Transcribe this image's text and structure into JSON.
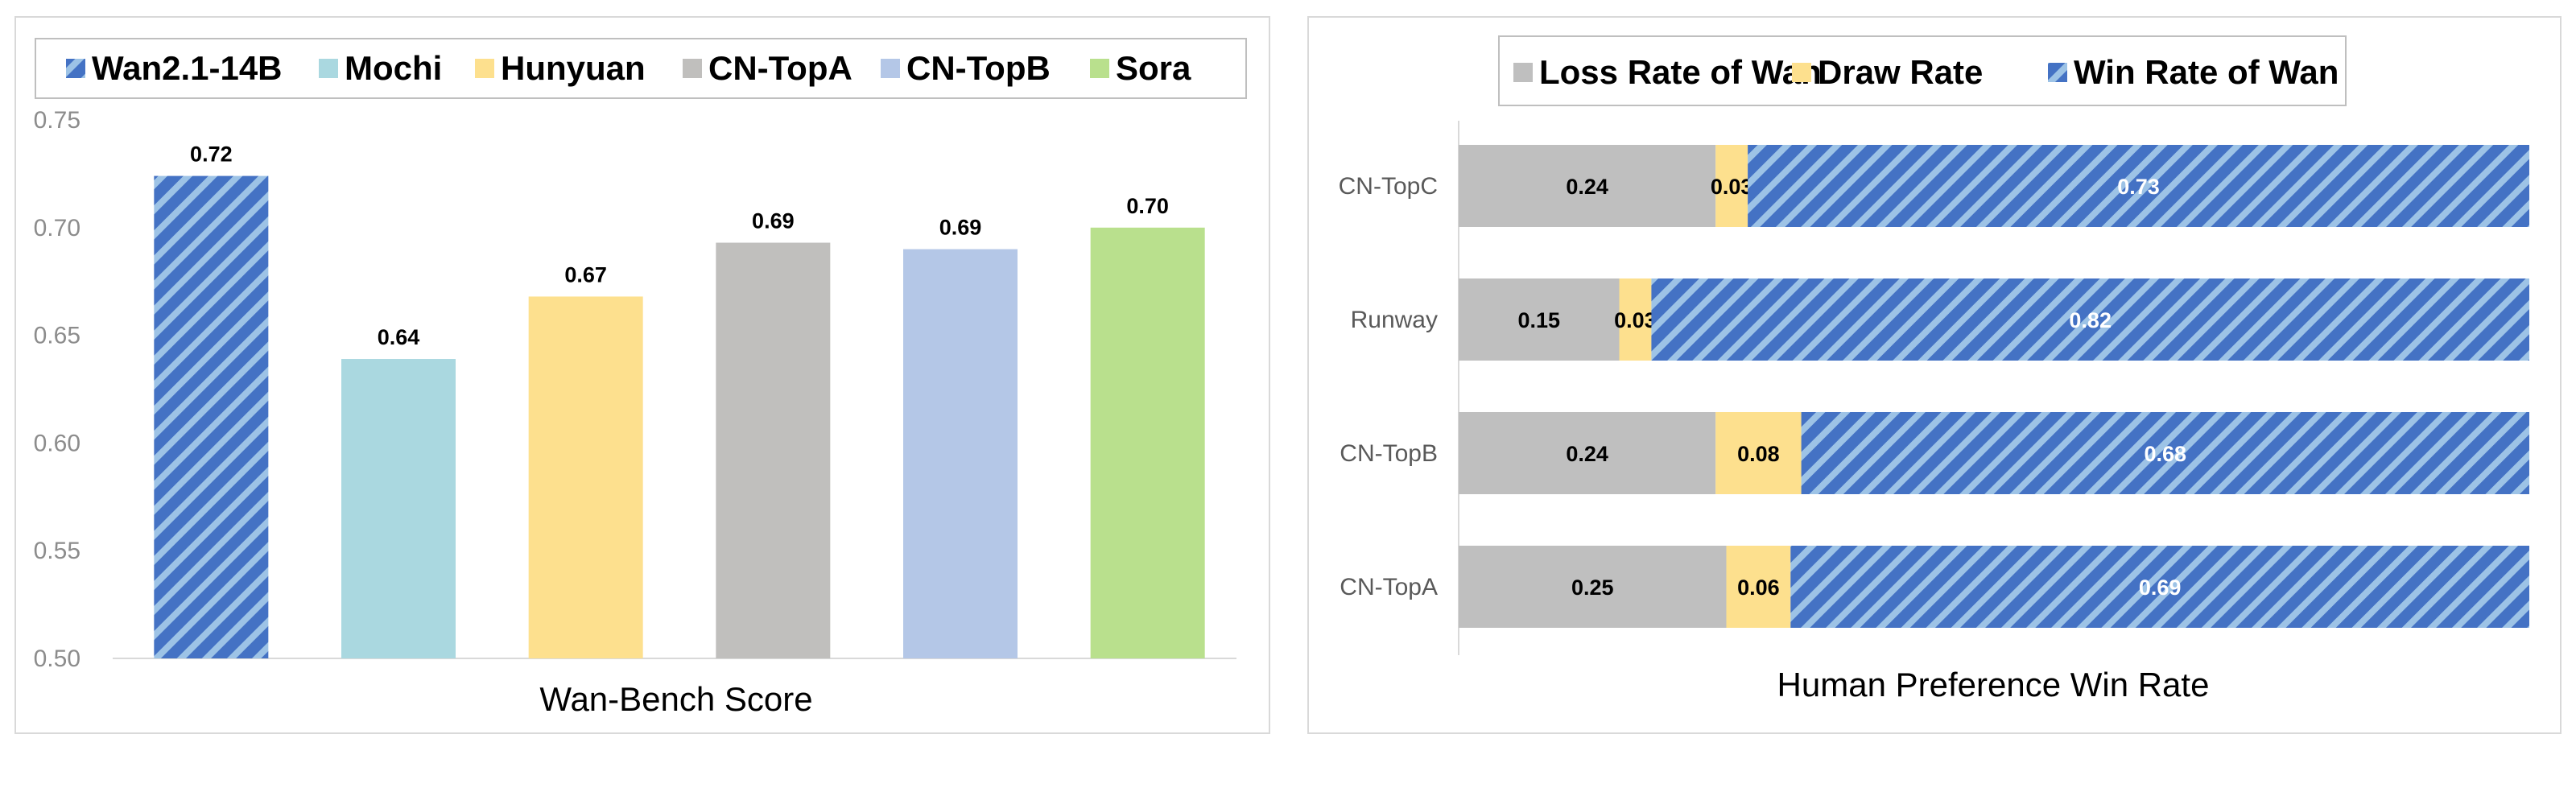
{
  "chart_data": [
    {
      "type": "bar",
      "title": "Wan-Bench Score",
      "xlabel": "Wan-Bench Score",
      "ylabel": "",
      "ylim": [
        0.5,
        0.75
      ],
      "yticks": [
        "0.50",
        "0.55",
        "0.60",
        "0.65",
        "0.70",
        "0.75"
      ],
      "categories": [
        "Wan2.1-14B",
        "Mochi",
        "Hunyuan",
        "CN-TopA",
        "CN-TopB",
        "Sora"
      ],
      "values": [
        0.724,
        0.639,
        0.668,
        0.693,
        0.69,
        0.7
      ],
      "value_labels": [
        "0.72",
        "0.64",
        "0.67",
        "0.69",
        "0.69",
        "0.70"
      ],
      "colors": [
        "#4472c4",
        "#aad8e0",
        "#fde08e",
        "#c0bfbd",
        "#b4c7e7",
        "#b9e08d"
      ],
      "hatched": [
        true,
        false,
        false,
        false,
        false,
        false
      ],
      "legend": [
        "Wan2.1-14B",
        "Mochi",
        "Hunyuan",
        "CN-TopA",
        "CN-TopB",
        "Sora"
      ],
      "legend_position": "top"
    },
    {
      "type": "bar",
      "orientation": "horizontal-stacked-100",
      "title": "Human Preference Win Rate",
      "xlabel": "Human Preference Win Rate",
      "categories": [
        "CN-TopC",
        "Runway",
        "CN-TopB",
        "CN-TopA"
      ],
      "series": [
        {
          "name": "Loss Rate of Wan",
          "color": "#bfbfbf",
          "values": [
            0.24,
            0.15,
            0.24,
            0.25
          ],
          "labels": [
            "0.24",
            "0.15",
            "0.24",
            "0.25"
          ],
          "hatched": false
        },
        {
          "name": "Draw Rate",
          "color": "#fde08e",
          "values": [
            0.03,
            0.03,
            0.08,
            0.06
          ],
          "labels": [
            "0.03",
            "0.03",
            "0.08",
            "0.06"
          ],
          "hatched": false
        },
        {
          "name": "Win Rate of Wan",
          "color": "#4472c4",
          "values": [
            0.73,
            0.82,
            0.68,
            0.69
          ],
          "labels": [
            "0.73",
            "0.82",
            "0.68",
            "0.69"
          ],
          "hatched": true
        }
      ],
      "legend_position": "top"
    }
  ]
}
